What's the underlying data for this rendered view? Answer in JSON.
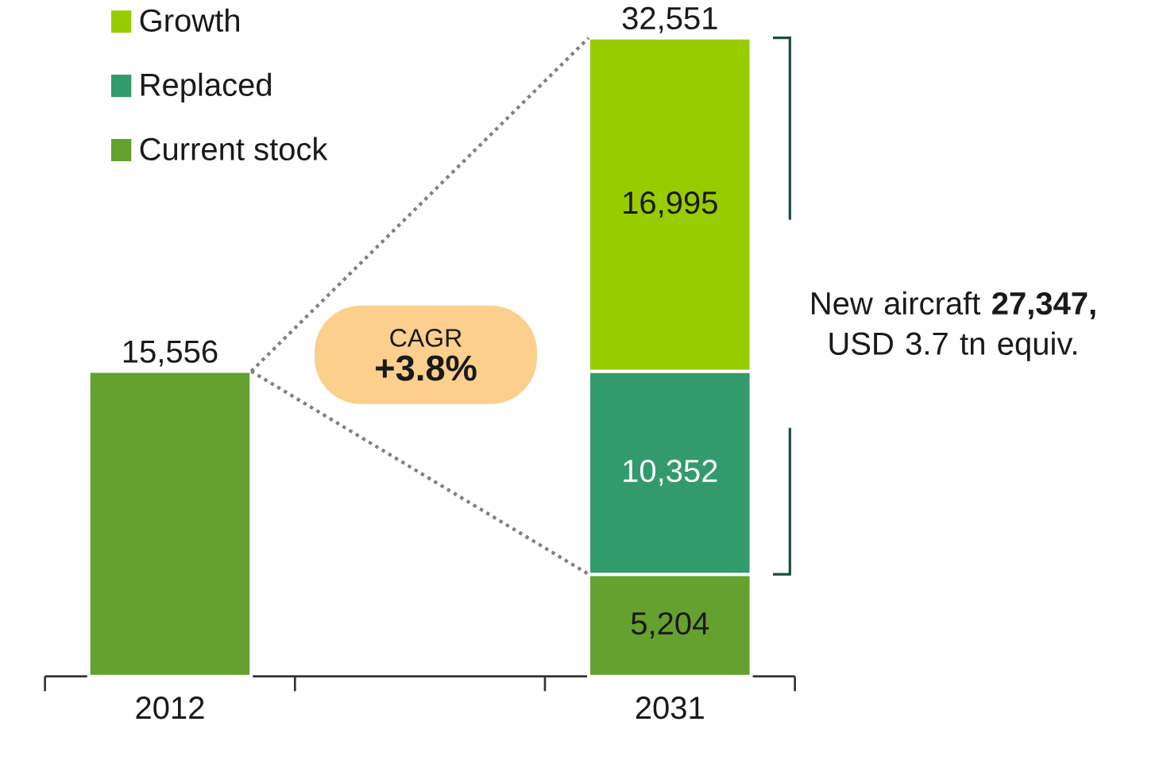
{
  "chart_data": {
    "type": "bar",
    "stacked": true,
    "categories": [
      "2012",
      "2031"
    ],
    "series": [
      {
        "name": "Current stock",
        "color": "#65a12f",
        "values": [
          15556,
          5204
        ],
        "value_labels": [
          null,
          "5,204"
        ]
      },
      {
        "name": "Replaced",
        "color": "#339a6b",
        "values": [
          null,
          10352
        ],
        "value_labels": [
          null,
          "10,352"
        ]
      },
      {
        "name": "Growth",
        "color": "#99cc00",
        "values": [
          null,
          16995
        ],
        "value_labels": [
          null,
          "16,995"
        ]
      }
    ],
    "totals": [
      "15,556",
      "32,551"
    ],
    "legend": "top left",
    "annotations": [
      "CAGR",
      "+3.8%",
      "New aircraft **27,347,** USD 3.7 tn equiv."
    ]
  }
}
